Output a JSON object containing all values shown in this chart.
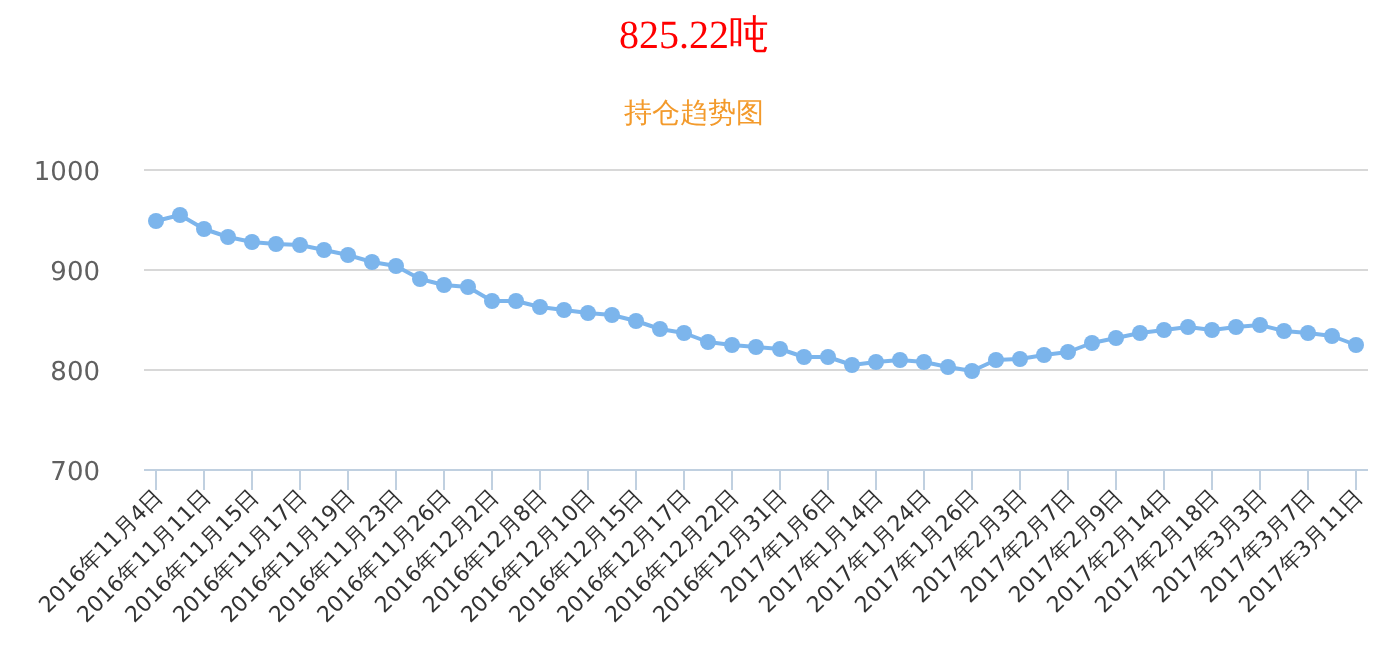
{
  "chart_data": {
    "type": "line",
    "title": "825.22吨",
    "subtitle": "持仓趋势图",
    "categories": [
      "2016年11月4日",
      null,
      "2016年11月11日",
      null,
      "2016年11月15日",
      null,
      "2016年11月17日",
      null,
      "2016年11月19日",
      null,
      "2016年11月23日",
      null,
      "2016年11月26日",
      null,
      "2016年12月2日",
      null,
      "2016年12月8日",
      null,
      "2016年12月10日",
      null,
      "2016年12月15日",
      null,
      "2016年12月17日",
      null,
      "2016年12月22日",
      null,
      "2016年12月31日",
      null,
      "2017年1月6日",
      null,
      "2017年1月14日",
      null,
      "2017年1月24日",
      null,
      "2017年1月26日",
      null,
      "2017年2月3日",
      null,
      "2017年2月7日",
      null,
      "2017年2月9日",
      null,
      "2017年2月14日",
      null,
      "2017年2月18日",
      null,
      "2017年3月3日",
      null,
      "2017年3月7日",
      null,
      "2017年3月11日"
    ],
    "series": [
      {
        "color": "#7cb5ec",
        "values": [
          949,
          955,
          941,
          933,
          928,
          926,
          925,
          920,
          915,
          908,
          904,
          891,
          885,
          883,
          869,
          869,
          863,
          860,
          857,
          855,
          849,
          841,
          837,
          828,
          825,
          823,
          821,
          813,
          813,
          805,
          808,
          810,
          808,
          803,
          799,
          810,
          811,
          815,
          818,
          827,
          832,
          837,
          840,
          843,
          840,
          843,
          845,
          839,
          837,
          834,
          825
        ]
      }
    ],
    "ylim": [
      700,
      1000
    ],
    "yticks": [
      700,
      800,
      900,
      1000
    ],
    "grid": "y",
    "marker": "circle"
  }
}
